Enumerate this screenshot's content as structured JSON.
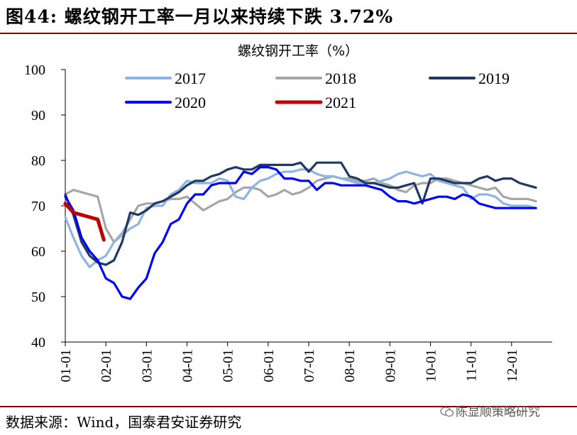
{
  "figure": {
    "title": "图44: 螺纹钢开工率一月以来持续下跌 3.72%",
    "source": "数据来源：Wind，国泰君安证券研究",
    "watermark": "陈显顺策略研究",
    "watermark_icon": "wechat-icon"
  },
  "chart_data": {
    "type": "line",
    "title": "螺纹钢开工率（%）",
    "xlabel": "",
    "ylabel": "",
    "ylim": [
      40,
      100
    ],
    "yticks": [
      40,
      50,
      60,
      70,
      80,
      90,
      100
    ],
    "xlim": [
      1,
      13
    ],
    "xticks": [
      {
        "label": "01-01",
        "value": 1
      },
      {
        "label": "02-01",
        "value": 2
      },
      {
        "label": "03-01",
        "value": 3
      },
      {
        "label": "04-01",
        "value": 4
      },
      {
        "label": "05-01",
        "value": 5
      },
      {
        "label": "06-01",
        "value": 6
      },
      {
        "label": "07-01",
        "value": 7
      },
      {
        "label": "08-01",
        "value": 8
      },
      {
        "label": "09-01",
        "value": 9
      },
      {
        "label": "10-01",
        "value": 10
      },
      {
        "label": "11-01",
        "value": 11
      },
      {
        "label": "12-01",
        "value": 12
      }
    ],
    "grid": false,
    "legend": "top",
    "series": [
      {
        "name": "2017",
        "color": "#8eb4e3",
        "x": [
          1.0,
          1.2,
          1.4,
          1.6,
          1.8,
          2.0,
          2.2,
          2.4,
          2.6,
          2.8,
          3.0,
          3.2,
          3.4,
          3.6,
          3.8,
          4.0,
          4.2,
          4.4,
          4.6,
          4.8,
          5.0,
          5.2,
          5.4,
          5.6,
          5.8,
          6.0,
          6.2,
          6.4,
          6.6,
          6.8,
          7.0,
          7.2,
          7.4,
          7.6,
          7.8,
          8.0,
          8.2,
          8.4,
          8.6,
          8.8,
          9.0,
          9.2,
          9.4,
          9.6,
          9.8,
          10.0,
          10.2,
          10.4,
          10.6,
          10.8,
          11.0,
          11.2,
          11.4,
          11.6,
          11.8,
          12.0,
          12.2,
          12.4,
          12.6
        ],
        "y": [
          67.5,
          63,
          59,
          56.5,
          58,
          59,
          62,
          63.5,
          65,
          66,
          69.5,
          70,
          70,
          72.5,
          73.5,
          75.5,
          75,
          75,
          75,
          76,
          75.5,
          72,
          71.5,
          74,
          75.5,
          76,
          77,
          77.5,
          77.5,
          78,
          78,
          77,
          76.5,
          76.5,
          76,
          75.5,
          75,
          75,
          75,
          75.5,
          76,
          77,
          77.5,
          77,
          76.5,
          77,
          75.5,
          75,
          74.5,
          74,
          71.5,
          72.5,
          72.5,
          72,
          70.5,
          70,
          70,
          70,
          69.5
        ]
      },
      {
        "name": "2018",
        "color": "#a6a6a6",
        "x": [
          1.0,
          1.2,
          1.4,
          1.6,
          1.8,
          2.0,
          2.2,
          2.4,
          2.6,
          2.8,
          3.0,
          3.2,
          3.4,
          3.6,
          3.8,
          4.0,
          4.2,
          4.4,
          4.6,
          4.8,
          5.0,
          5.2,
          5.4,
          5.6,
          5.8,
          6.0,
          6.2,
          6.4,
          6.6,
          6.8,
          7.0,
          7.2,
          7.4,
          7.6,
          7.8,
          8.0,
          8.2,
          8.4,
          8.6,
          8.8,
          9.0,
          9.2,
          9.4,
          9.6,
          9.8,
          10.0,
          10.2,
          10.4,
          10.6,
          10.8,
          11.0,
          11.2,
          11.4,
          11.6,
          11.8,
          12.0,
          12.2,
          12.4,
          12.6
        ],
        "y": [
          72.5,
          73.5,
          73,
          72.5,
          72,
          65,
          62,
          64,
          67,
          70,
          70.5,
          70.5,
          71,
          71.5,
          71.5,
          72,
          70.5,
          69,
          70,
          71,
          71.5,
          73,
          74,
          74,
          73.5,
          72,
          72.5,
          73.5,
          72.5,
          73,
          74,
          75.5,
          76,
          76.5,
          76,
          76,
          75.5,
          75.5,
          76,
          75,
          74.5,
          73.5,
          73,
          74.5,
          75,
          75,
          76,
          76,
          75.5,
          75,
          74.5,
          74,
          73.5,
          74,
          72,
          71.5,
          71.5,
          71.5,
          71
        ]
      },
      {
        "name": "2019",
        "color": "#1f3864",
        "x": [
          1.0,
          1.2,
          1.4,
          1.6,
          1.8,
          2.0,
          2.2,
          2.4,
          2.6,
          2.8,
          3.0,
          3.2,
          3.4,
          3.6,
          3.8,
          4.0,
          4.2,
          4.4,
          4.6,
          4.8,
          5.0,
          5.2,
          5.4,
          5.6,
          5.8,
          6.0,
          6.2,
          6.4,
          6.6,
          6.8,
          7.0,
          7.2,
          7.4,
          7.6,
          7.8,
          8.0,
          8.2,
          8.4,
          8.6,
          8.8,
          9.0,
          9.2,
          9.4,
          9.6,
          9.8,
          10.0,
          10.2,
          10.4,
          10.6,
          10.8,
          11.0,
          11.2,
          11.4,
          11.6,
          11.8,
          12.0,
          12.2,
          12.4,
          12.6
        ],
        "y": [
          72.5,
          68,
          62,
          59,
          57.5,
          57,
          58,
          62,
          68.5,
          68,
          69,
          70.5,
          71,
          72,
          73,
          74.5,
          75.5,
          75.5,
          76.5,
          77,
          78,
          78.5,
          78,
          78,
          79,
          79,
          79,
          79,
          79,
          79.5,
          77.5,
          79.5,
          79.5,
          79.5,
          79.5,
          76.5,
          76,
          75,
          75,
          74.5,
          74,
          74,
          74.5,
          75,
          70.5,
          76,
          76,
          75.5,
          75,
          75,
          75,
          76,
          76.5,
          75.5,
          76,
          76,
          75,
          74.5,
          74
        ]
      },
      {
        "name": "2020",
        "color": "#0000ff",
        "x": [
          1.0,
          1.2,
          1.4,
          1.6,
          1.8,
          2.0,
          2.2,
          2.4,
          2.6,
          2.8,
          3.0,
          3.2,
          3.4,
          3.6,
          3.8,
          4.0,
          4.2,
          4.4,
          4.6,
          4.8,
          5.0,
          5.2,
          5.4,
          5.6,
          5.8,
          6.0,
          6.2,
          6.4,
          6.6,
          6.8,
          7.0,
          7.2,
          7.4,
          7.6,
          7.8,
          8.0,
          8.2,
          8.4,
          8.6,
          8.8,
          9.0,
          9.2,
          9.4,
          9.6,
          9.8,
          10.0,
          10.2,
          10.4,
          10.6,
          10.8,
          11.0,
          11.2,
          11.4,
          11.6,
          11.8,
          12.0,
          12.2,
          12.4,
          12.6
        ],
        "y": [
          72,
          69,
          63,
          60,
          58,
          54,
          53,
          50,
          49.5,
          52,
          54,
          59.5,
          62,
          66,
          67,
          70.5,
          72.5,
          72.5,
          74.5,
          75,
          75,
          75,
          77.5,
          77,
          78.5,
          78.5,
          78,
          76,
          76,
          75.5,
          75.5,
          73.5,
          75,
          75,
          74.5,
          74.5,
          74.5,
          74.5,
          74,
          73.5,
          72,
          71,
          71,
          70.5,
          71,
          71.5,
          72,
          72,
          71.5,
          72.5,
          72,
          70.5,
          70,
          69.5,
          69.5,
          69.5,
          69.5,
          69.5,
          69.5
        ]
      },
      {
        "name": "2021",
        "color": "#c00000",
        "x": [
          1.0,
          1.2,
          1.4,
          1.6,
          1.8,
          1.95
        ],
        "y": [
          70.5,
          68.5,
          68,
          67.5,
          67,
          62.5
        ]
      }
    ]
  }
}
